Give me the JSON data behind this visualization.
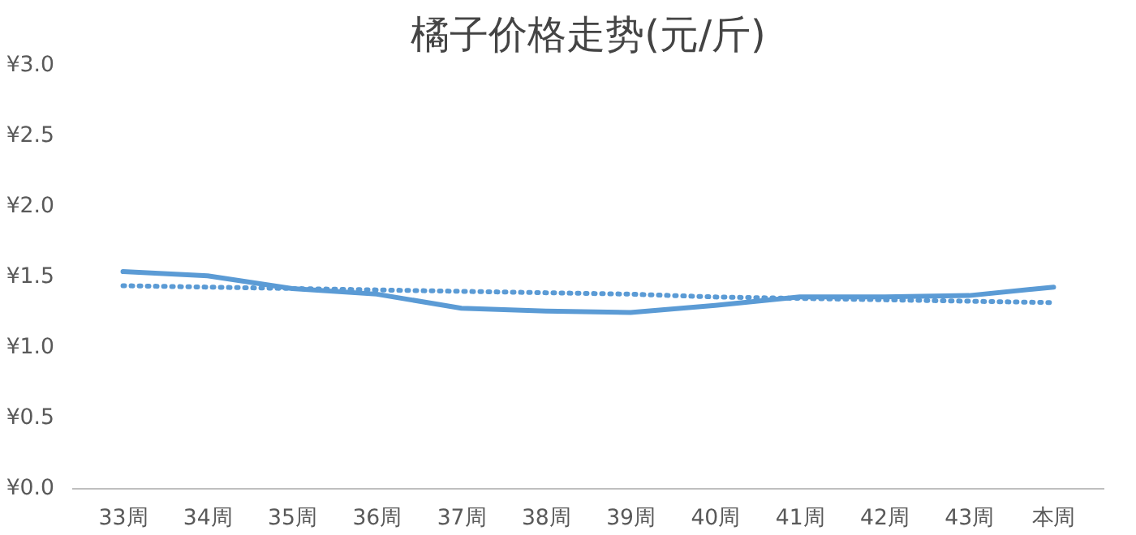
{
  "chart_data": {
    "type": "line",
    "title": "橘子价格走势(元/斤)",
    "categories": [
      "33周",
      "34周",
      "35周",
      "36周",
      "37周",
      "38周",
      "39周",
      "40周",
      "41周",
      "42周",
      "43周",
      "本周"
    ],
    "ylim": [
      0,
      3
    ],
    "yticks": [
      {
        "value": 0,
        "label": "¥0.0"
      },
      {
        "value": 0.5,
        "label": "¥0.5"
      },
      {
        "value": 1,
        "label": "¥1.0"
      },
      {
        "value": 1.5,
        "label": "¥1.5"
      },
      {
        "value": 2,
        "label": "¥2.0"
      },
      {
        "value": 2.5,
        "label": "¥2.5"
      },
      {
        "value": 3,
        "label": "¥3.0"
      }
    ],
    "grid": false,
    "series": [
      {
        "color": "#5b9bd5",
        "line_style": "solid",
        "values": [
          1.54,
          1.51,
          1.42,
          1.38,
          1.28,
          1.26,
          1.25,
          1.3,
          1.36,
          1.36,
          1.37,
          1.43
        ]
      },
      {
        "color": "#5b9bd5",
        "line_style": "dotted",
        "values": [
          1.44,
          1.43,
          1.42,
          1.41,
          1.4,
          1.39,
          1.38,
          1.36,
          1.35,
          1.34,
          1.33,
          1.32
        ]
      }
    ]
  }
}
